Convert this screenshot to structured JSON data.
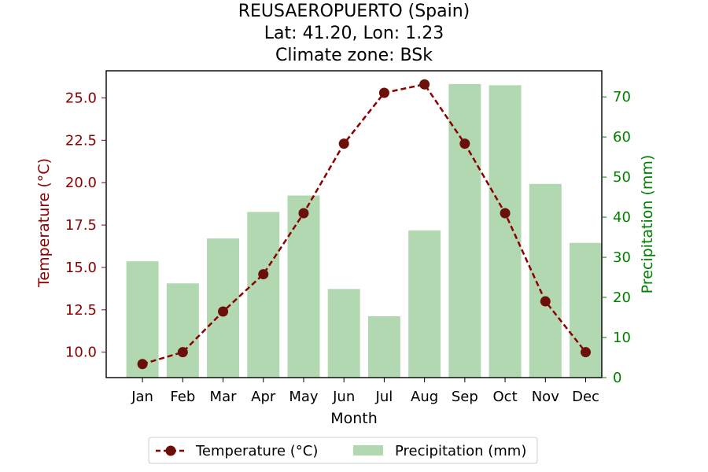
{
  "chart_data": {
    "type": "bar+line",
    "title_lines": [
      "REUSAEROPUERTO (Spain)",
      "Lat: 41.20, Lon: 1.23",
      "Climate zone: BSk"
    ],
    "xlabel": "Month",
    "categories": [
      "Jan",
      "Feb",
      "Mar",
      "Apr",
      "May",
      "Jun",
      "Jul",
      "Aug",
      "Sep",
      "Oct",
      "Nov",
      "Dec"
    ],
    "temperature": {
      "name": "Temperature (°C)",
      "axis_label": "Temperature (°C)",
      "color": "#8b0000",
      "marker_color": "#6b0f0a",
      "values": [
        9.3,
        10.0,
        12.4,
        14.6,
        18.2,
        22.3,
        25.3,
        25.8,
        22.3,
        18.2,
        13.0,
        10.0
      ],
      "ylim": [
        8.5,
        26.6
      ],
      "ticks": [
        "10.0",
        "12.5",
        "15.0",
        "17.5",
        "20.0",
        "22.5",
        "25.0"
      ]
    },
    "precipitation": {
      "name": "Precipitation (mm)",
      "axis_label": "Precipitation (mm)",
      "color": "#008000",
      "bar_color": "#b2d8b2",
      "values": [
        29,
        23.5,
        34.7,
        41.3,
        45.4,
        22.1,
        15.3,
        36.7,
        73.2,
        72.9,
        48.3,
        33.6
      ],
      "ylim": [
        0,
        76.5
      ],
      "ticks": [
        "0",
        "10",
        "20",
        "30",
        "40",
        "50",
        "60",
        "70"
      ]
    },
    "legend": {
      "placement": "bottom-center",
      "items": [
        "Temperature (°C)",
        "Precipitation (mm)"
      ]
    },
    "grid": false
  }
}
